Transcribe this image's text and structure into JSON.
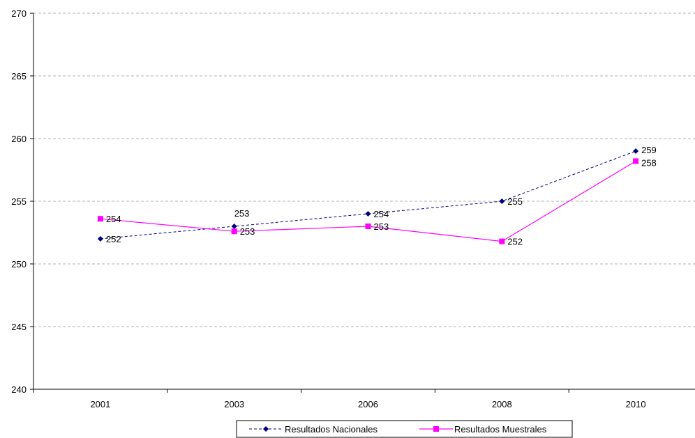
{
  "chart_data": {
    "type": "line",
    "title": "",
    "xlabel": "",
    "ylabel": "",
    "categories": [
      "2001",
      "2003",
      "2006",
      "2008",
      "2010"
    ],
    "ylim": [
      240,
      270
    ],
    "yticks": [
      240,
      245,
      250,
      255,
      260,
      265,
      270
    ],
    "grid": "horizontal dashed",
    "legend_position": "bottom-center",
    "series": [
      {
        "name": "Resultados Nacionales",
        "values": [
          252,
          253,
          254,
          255,
          259
        ],
        "labels": [
          "252",
          "253",
          "254",
          "255",
          "259"
        ],
        "color": "#000080",
        "line_style": "dashed",
        "marker": "diamond"
      },
      {
        "name": "Resultados Muestrales",
        "values": [
          253.6,
          252.6,
          253.0,
          251.8,
          258.2
        ],
        "labels": [
          "254",
          "253",
          "253",
          "252",
          "258"
        ],
        "color": "#ff00ff",
        "line_style": "solid",
        "marker": "square"
      }
    ]
  }
}
